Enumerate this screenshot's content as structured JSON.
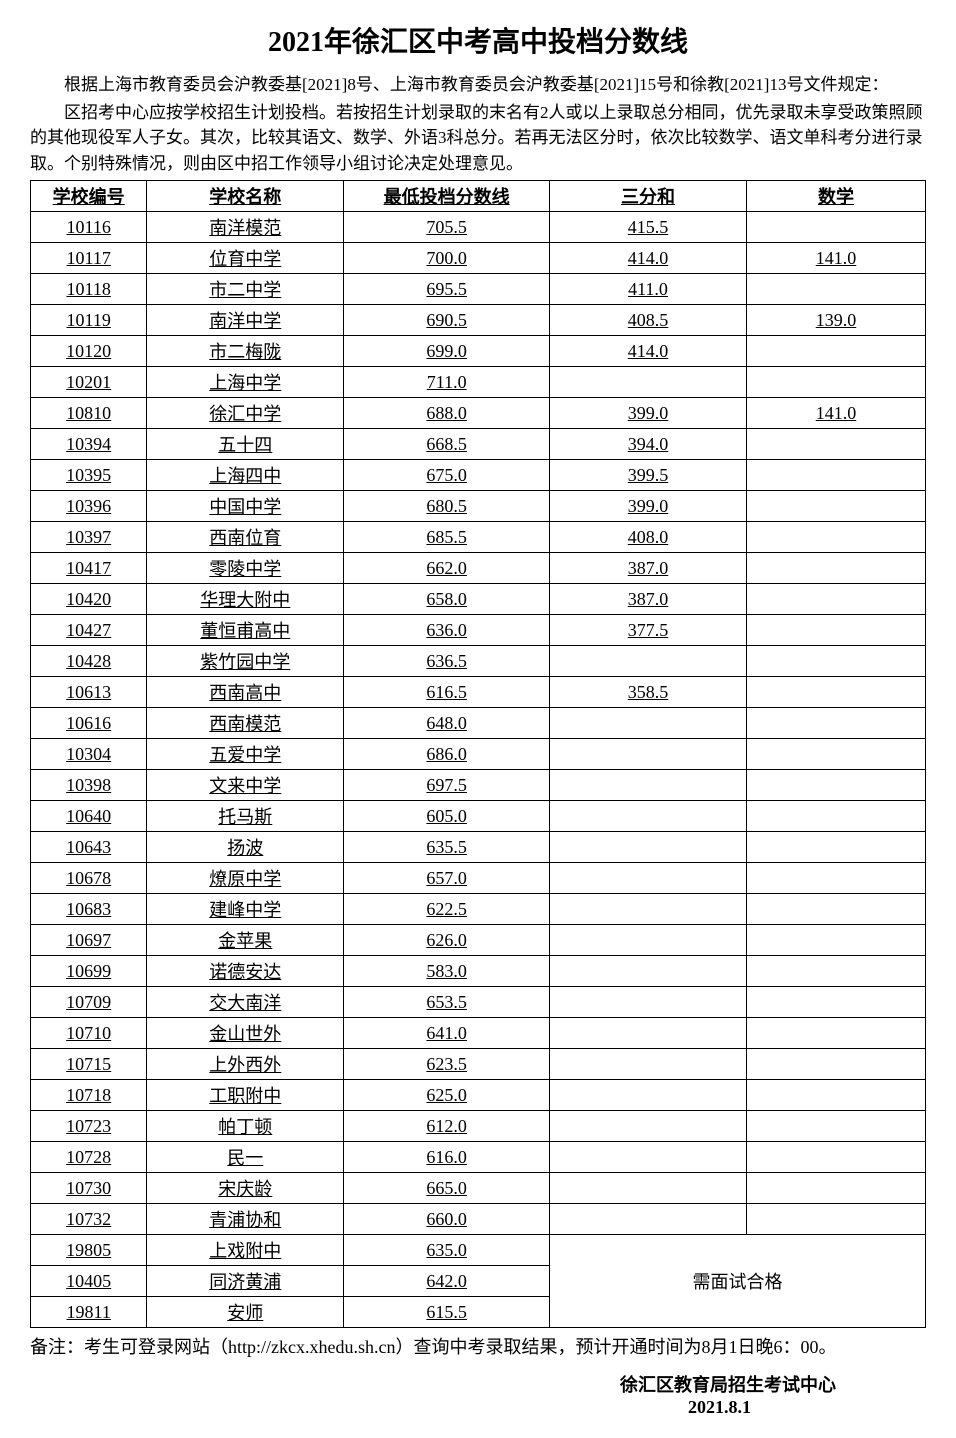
{
  "title": "2021年徐汇区中考高中投档分数线",
  "intro1": "根据上海市教育委员会沪教委基[2021]8号、上海市教育委员会沪教委基[2021]15号和徐教[2021]13号文件规定：",
  "intro2": "区招考中心应按学校招生计划投档。若按招生计划录取的末名有2人或以上录取总分相同，优先录取未享受政策照顾的其他现役军人子女。其次，比较其语文、数学、外语3科总分。若再无法区分时，依次比较数学、语文单科考分进行录取。个别特殊情况，则由区中招工作领导小组讨论决定处理意见。",
  "headers": {
    "id": "学校编号",
    "name": "学校名称",
    "score": "最低投档分数线",
    "three": "三分和",
    "math": "数学"
  },
  "rows": [
    {
      "id": "10116",
      "name": "南洋模范",
      "score": "705.5",
      "three": "415.5",
      "math": ""
    },
    {
      "id": "10117",
      "name": "位育中学",
      "score": "700.0",
      "three": "414.0",
      "math": "141.0"
    },
    {
      "id": "10118",
      "name": "市二中学",
      "score": "695.5",
      "three": "411.0",
      "math": ""
    },
    {
      "id": "10119",
      "name": "南洋中学",
      "score": "690.5",
      "three": "408.5",
      "math": "139.0"
    },
    {
      "id": "10120",
      "name": "市二梅陇",
      "score": "699.0",
      "three": "414.0",
      "math": ""
    },
    {
      "id": "10201",
      "name": "上海中学",
      "score": "711.0",
      "three": "",
      "math": ""
    },
    {
      "id": "10810",
      "name": "徐汇中学",
      "score": "688.0",
      "three": "399.0",
      "math": "141.0"
    },
    {
      "id": "10394",
      "name": "五十四",
      "score": "668.5",
      "three": "394.0",
      "math": ""
    },
    {
      "id": "10395",
      "name": "上海四中",
      "score": "675.0",
      "three": "399.5",
      "math": ""
    },
    {
      "id": "10396",
      "name": "中国中学",
      "score": "680.5",
      "three": "399.0",
      "math": ""
    },
    {
      "id": "10397",
      "name": "西南位育",
      "score": "685.5",
      "three": "408.0",
      "math": ""
    },
    {
      "id": "10417",
      "name": "零陵中学",
      "score": "662.0",
      "three": "387.0",
      "math": ""
    },
    {
      "id": "10420",
      "name": "华理大附中",
      "score": "658.0",
      "three": "387.0",
      "math": ""
    },
    {
      "id": "10427",
      "name": "董恒甫高中",
      "score": "636.0",
      "three": "377.5",
      "math": ""
    },
    {
      "id": "10428",
      "name": "紫竹园中学",
      "score": "636.5",
      "three": "",
      "math": ""
    },
    {
      "id": "10613",
      "name": "西南高中",
      "score": "616.5",
      "three": "358.5",
      "math": ""
    },
    {
      "id": "10616",
      "name": "西南模范",
      "score": "648.0",
      "three": "",
      "math": ""
    },
    {
      "id": "10304",
      "name": "五爱中学",
      "score": "686.0",
      "three": "",
      "math": ""
    },
    {
      "id": "10398",
      "name": "文来中学",
      "score": "697.5",
      "three": "",
      "math": ""
    },
    {
      "id": "10640",
      "name": "托马斯",
      "score": "605.0",
      "three": "",
      "math": ""
    },
    {
      "id": "10643",
      "name": "扬波",
      "score": "635.5",
      "three": "",
      "math": ""
    },
    {
      "id": "10678",
      "name": "燎原中学",
      "score": "657.0",
      "three": "",
      "math": ""
    },
    {
      "id": "10683",
      "name": "建峰中学",
      "score": "622.5",
      "three": "",
      "math": ""
    },
    {
      "id": "10697",
      "name": "金苹果",
      "score": "626.0",
      "three": "",
      "math": ""
    },
    {
      "id": "10699",
      "name": "诺德安达",
      "score": "583.0",
      "three": "",
      "math": ""
    },
    {
      "id": "10709",
      "name": "交大南洋",
      "score": "653.5",
      "three": "",
      "math": ""
    },
    {
      "id": "10710",
      "name": "金山世外",
      "score": "641.0",
      "three": "",
      "math": ""
    },
    {
      "id": "10715",
      "name": "上外西外",
      "score": "623.5",
      "three": "",
      "math": ""
    },
    {
      "id": "10718",
      "name": "工职附中",
      "score": "625.0",
      "three": "",
      "math": ""
    },
    {
      "id": "10723",
      "name": "帕丁顿",
      "score": "612.0",
      "three": "",
      "math": ""
    },
    {
      "id": "10728",
      "name": "民一",
      "score": "616.0",
      "three": "",
      "math": ""
    },
    {
      "id": "10730",
      "name": "宋庆龄",
      "score": "665.0",
      "three": "",
      "math": ""
    },
    {
      "id": "10732",
      "name": "青浦协和",
      "score": "660.0",
      "three": "",
      "math": ""
    }
  ],
  "merged_rows": [
    {
      "id": "19805",
      "name": "上戏附中",
      "score": "635.0"
    },
    {
      "id": "10405",
      "name": "同济黄浦",
      "score": "642.0"
    },
    {
      "id": "19811",
      "name": "安师",
      "score": "615.5"
    }
  ],
  "merged_text": "需面试合格",
  "footnote": "备注：考生可登录网站（http://zkcx.xhedu.sh.cn）查询中考录取结果，预计开通时间为8月1日晚6：00。",
  "signature": "徐汇区教育局招生考试中心",
  "date": "2021.8.1"
}
